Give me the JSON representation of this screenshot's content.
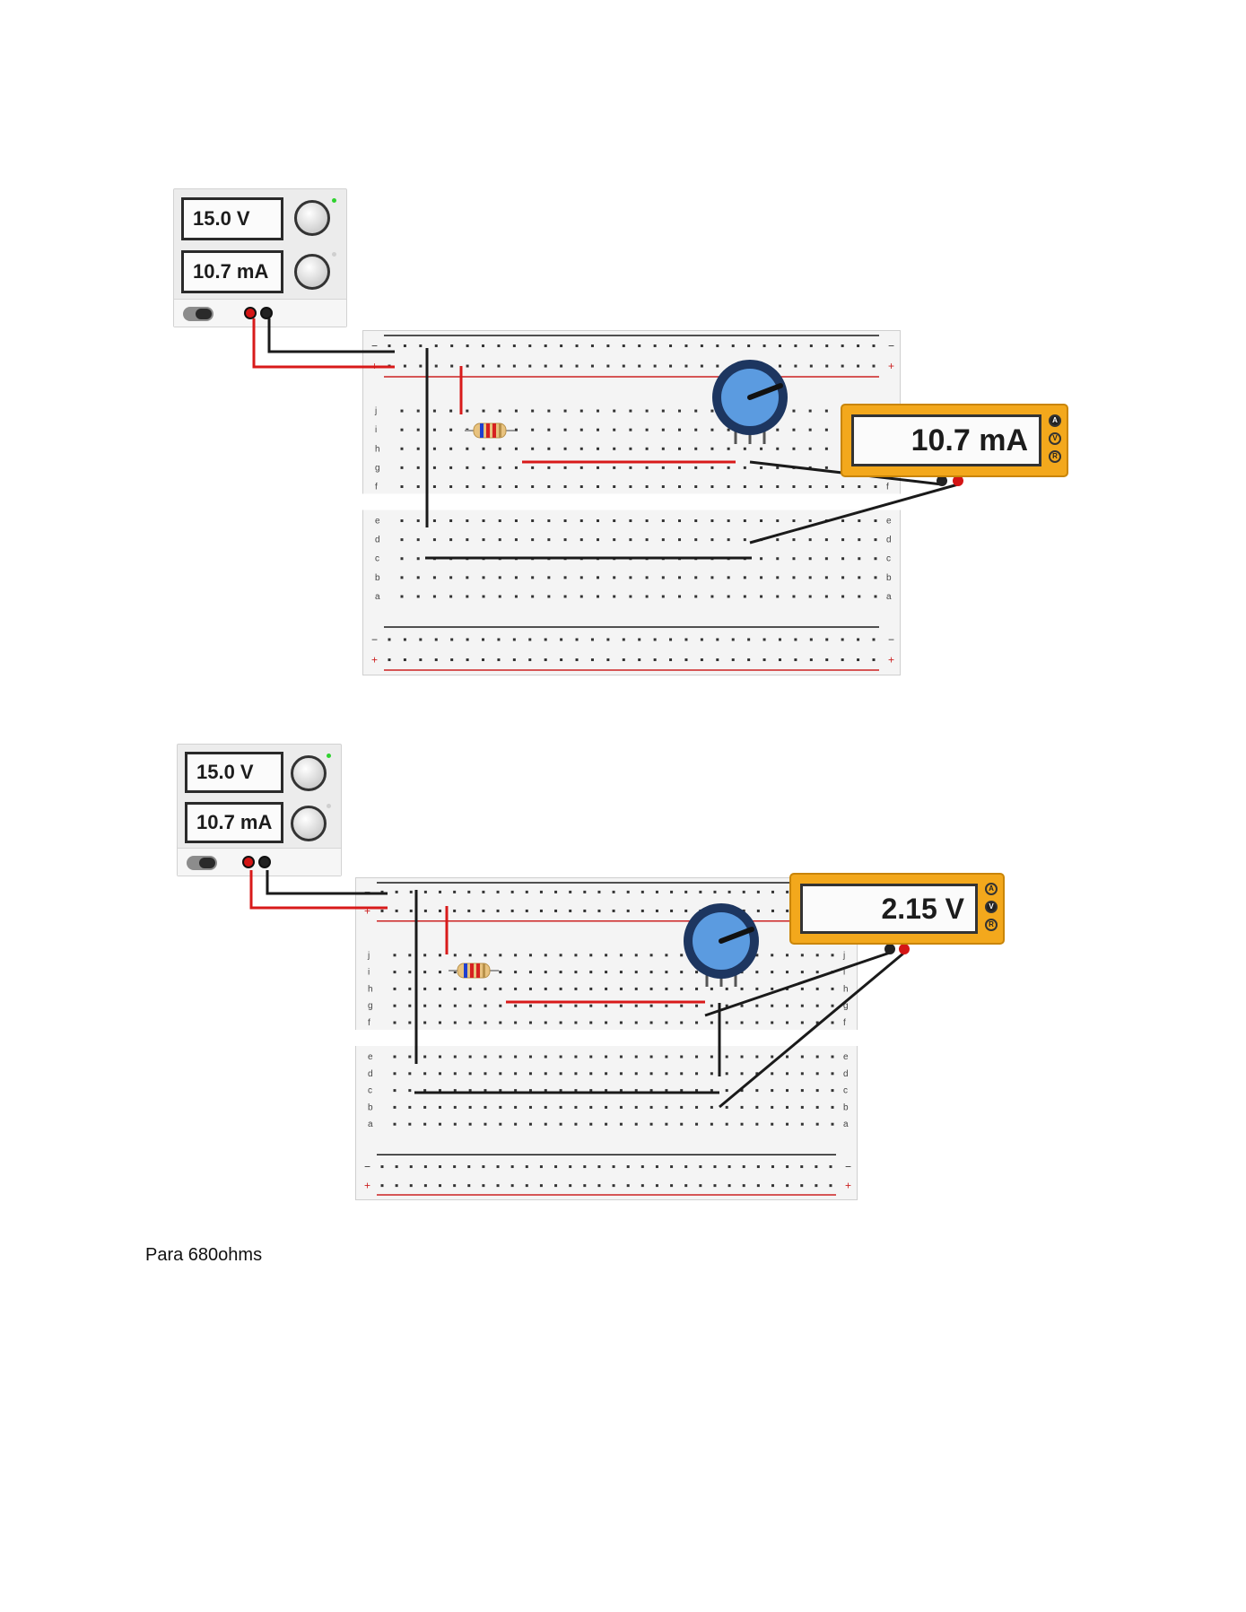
{
  "figures": [
    {
      "psu": {
        "voltage": "15.0 V",
        "current": "10.7 mA"
      },
      "meter": {
        "reading": "10.7 mA",
        "buttons": [
          "A",
          "V",
          "R"
        ],
        "active_mode": "A"
      }
    },
    {
      "psu": {
        "voltage": "15.0 V",
        "current": "10.7 mA"
      },
      "meter": {
        "reading": "2.15 V",
        "buttons": [
          "A",
          "V",
          "R"
        ],
        "active_mode": "V"
      }
    }
  ],
  "breadboard": {
    "row_letters_top": [
      "j",
      "i",
      "h",
      "g",
      "f"
    ],
    "row_letters_bottom": [
      "e",
      "d",
      "c",
      "b",
      "a"
    ],
    "rail_minus": "−",
    "rail_plus": "+"
  },
  "caption": "Para 680ohms",
  "colors": {
    "wire_red": "#d81a1a",
    "wire_black": "#1a1a1a",
    "pot_blue": "#5b9be0",
    "meter_orange": "#f3a81c"
  }
}
